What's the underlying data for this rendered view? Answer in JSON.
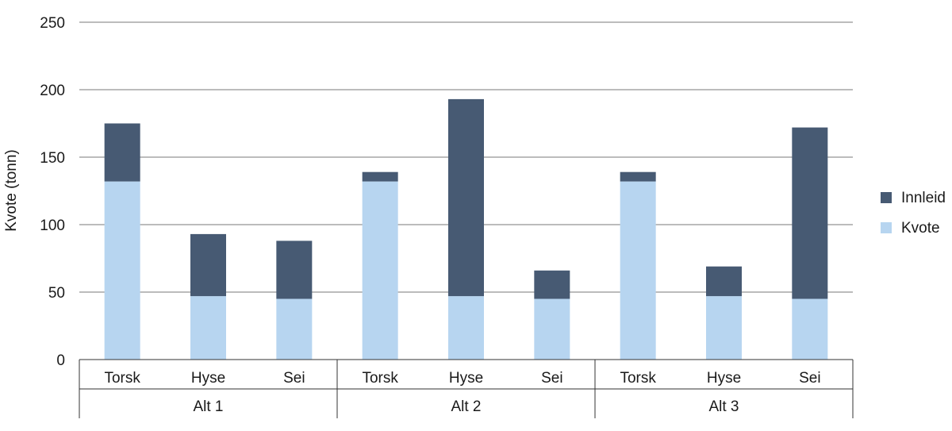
{
  "chart_data": {
    "type": "bar",
    "stacked": true,
    "ylabel": "Kvote (tonn)",
    "ylim": [
      0,
      250
    ],
    "yticks": [
      "0",
      "50",
      "100",
      "150",
      "200",
      "250"
    ],
    "grid": true,
    "legend_position": "right",
    "groups": [
      "Alt 1",
      "Alt 2",
      "Alt 3"
    ],
    "categories": [
      "Torsk",
      "Hyse",
      "Sei",
      "Torsk",
      "Hyse",
      "Sei",
      "Torsk",
      "Hyse",
      "Sei"
    ],
    "category_group": [
      0,
      0,
      0,
      1,
      1,
      1,
      2,
      2,
      2
    ],
    "series": [
      {
        "name": "Kvote",
        "color": "#b7d5f0",
        "values": [
          132,
          47,
          45,
          132,
          47,
          45,
          132,
          47,
          45
        ]
      },
      {
        "name": "Innleid",
        "color": "#475a73",
        "values": [
          43,
          46,
          43,
          7,
          146,
          21,
          7,
          22,
          127
        ]
      }
    ],
    "legend": [
      "Innleid",
      "Kvote"
    ]
  }
}
